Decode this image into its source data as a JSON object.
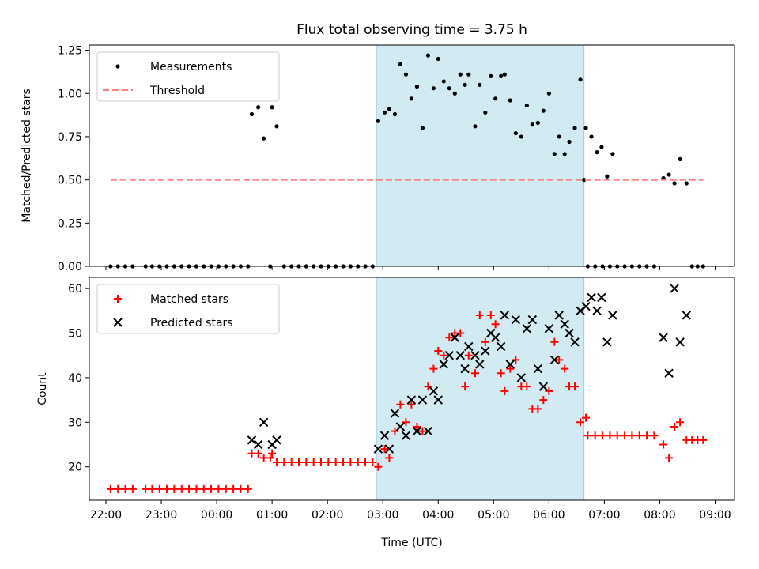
{
  "figure_title": "Flux total observing time = 3.75 h",
  "x_axis": {
    "label": "Time (UTC)",
    "range_hours": [
      21.7,
      33.35
    ],
    "ticks": [
      {
        "h": 22,
        "label": "22:00"
      },
      {
        "h": 23,
        "label": "23:00"
      },
      {
        "h": 24,
        "label": "00:00"
      },
      {
        "h": 25,
        "label": "01:00"
      },
      {
        "h": 26,
        "label": "02:00"
      },
      {
        "h": 27,
        "label": "03:00"
      },
      {
        "h": 28,
        "label": "04:00"
      },
      {
        "h": 29,
        "label": "05:00"
      },
      {
        "h": 30,
        "label": "06:00"
      },
      {
        "h": 31,
        "label": "07:00"
      },
      {
        "h": 32,
        "label": "08:00"
      },
      {
        "h": 33,
        "label": "09:00"
      }
    ]
  },
  "observing_window": {
    "start": "02:53",
    "end": "06:38",
    "color": "#add8e6"
  },
  "chart_data": [
    {
      "type": "scatter",
      "ylabel": "Matched/Predicted stars",
      "ylim": [
        0,
        1.28
      ],
      "yticks": [
        "0.00",
        "0.25",
        "0.50",
        "0.75",
        "1.00",
        "1.25"
      ],
      "legend_position": "top-left",
      "series": [
        {
          "name": "Measurements",
          "color": "#000000",
          "marker": "dot",
          "points": [
            [
              "22:05",
              0
            ],
            [
              "22:13",
              0
            ],
            [
              "22:21",
              0
            ],
            [
              "22:29",
              0
            ],
            [
              "22:43",
              0
            ],
            [
              "22:50",
              0
            ],
            [
              "22:58",
              0
            ],
            [
              "23:06",
              0
            ],
            [
              "23:14",
              0
            ],
            [
              "23:22",
              0
            ],
            [
              "23:30",
              0
            ],
            [
              "23:38",
              0
            ],
            [
              "23:46",
              0
            ],
            [
              "23:54",
              0
            ],
            [
              "00:02",
              0
            ],
            [
              "00:10",
              0
            ],
            [
              "00:18",
              0
            ],
            [
              "00:26",
              0
            ],
            [
              "00:34",
              0
            ],
            [
              "00:38",
              0.88
            ],
            [
              "00:45",
              0.92
            ],
            [
              "00:51",
              0.74
            ],
            [
              "00:58",
              0
            ],
            [
              "01:00",
              0.92
            ],
            [
              "01:05",
              0.81
            ],
            [
              "01:13",
              0
            ],
            [
              "01:21",
              0
            ],
            [
              "01:29",
              0
            ],
            [
              "01:37",
              0
            ],
            [
              "01:45",
              0
            ],
            [
              "01:53",
              0
            ],
            [
              "02:01",
              0
            ],
            [
              "02:09",
              0
            ],
            [
              "02:17",
              0
            ],
            [
              "02:25",
              0
            ],
            [
              "02:33",
              0
            ],
            [
              "02:41",
              0
            ],
            [
              "02:49",
              0
            ],
            [
              "02:55",
              0.84
            ],
            [
              "03:02",
              0.89
            ],
            [
              "03:07",
              0.91
            ],
            [
              "03:13",
              0.88
            ],
            [
              "03:19",
              1.17
            ],
            [
              "03:25",
              1.11
            ],
            [
              "03:31",
              0.97
            ],
            [
              "03:37",
              1.04
            ],
            [
              "03:43",
              0.8
            ],
            [
              "03:49",
              1.22
            ],
            [
              "03:55",
              1.03
            ],
            [
              "04:00",
              1.2
            ],
            [
              "04:06",
              1.07
            ],
            [
              "04:12",
              1.03
            ],
            [
              "04:18",
              1.0
            ],
            [
              "04:24",
              1.11
            ],
            [
              "04:29",
              1.05
            ],
            [
              "04:33",
              1.11
            ],
            [
              "04:40",
              0.81
            ],
            [
              "04:45",
              1.05
            ],
            [
              "04:51",
              0.89
            ],
            [
              "04:57",
              1.1
            ],
            [
              "05:02",
              0.97
            ],
            [
              "05:08",
              1.1
            ],
            [
              "05:12",
              1.11
            ],
            [
              "05:18",
              0.96
            ],
            [
              "05:24",
              0.77
            ],
            [
              "05:30",
              0.75
            ],
            [
              "05:36",
              0.93
            ],
            [
              "05:42",
              0.82
            ],
            [
              "05:48",
              0.83
            ],
            [
              "05:54",
              0.9
            ],
            [
              "06:00",
              1.0
            ],
            [
              "06:06",
              0.65
            ],
            [
              "06:11",
              0.75
            ],
            [
              "06:17",
              0.65
            ],
            [
              "06:22",
              0.72
            ],
            [
              "06:28",
              0.8
            ],
            [
              "06:34",
              1.08
            ],
            [
              "06:40",
              0.8
            ],
            [
              "06:46",
              0.75
            ],
            [
              "06:52",
              0.66
            ],
            [
              "06:57",
              0.69
            ],
            [
              "07:03",
              0.52
            ],
            [
              "07:09",
              0.65
            ],
            [
              "06:38",
              0.5
            ],
            [
              "06:42",
              0
            ],
            [
              "06:50",
              0
            ],
            [
              "06:58",
              0
            ],
            [
              "07:06",
              0
            ],
            [
              "07:14",
              0
            ],
            [
              "07:22",
              0
            ],
            [
              "07:30",
              0
            ],
            [
              "07:38",
              0
            ],
            [
              "07:46",
              0
            ],
            [
              "07:54",
              0
            ],
            [
              "08:04",
              0.51
            ],
            [
              "08:10",
              0.53
            ],
            [
              "08:16",
              0.48
            ],
            [
              "08:22",
              0.62
            ],
            [
              "08:29",
              0.48
            ],
            [
              "08:35",
              0
            ],
            [
              "08:41",
              0
            ],
            [
              "08:47",
              0
            ]
          ]
        },
        {
          "name": "Threshold",
          "color": "#ff7f7f",
          "style": "dashed",
          "x": [
            "22:05",
            "08:47"
          ],
          "y": 0.5
        }
      ]
    },
    {
      "type": "scatter",
      "ylabel": "Count",
      "ylim": [
        12.5,
        62.5
      ],
      "yticks": [
        "20",
        "30",
        "40",
        "50",
        "60"
      ],
      "legend_position": "top-left",
      "series": [
        {
          "name": "Matched stars",
          "color": "#ff0000",
          "marker": "plus",
          "points": [
            [
              "22:05",
              15
            ],
            [
              "22:13",
              15
            ],
            [
              "22:21",
              15
            ],
            [
              "22:29",
              15
            ],
            [
              "22:43",
              15
            ],
            [
              "22:50",
              15
            ],
            [
              "22:58",
              15
            ],
            [
              "23:06",
              15
            ],
            [
              "23:14",
              15
            ],
            [
              "23:22",
              15
            ],
            [
              "23:30",
              15
            ],
            [
              "23:38",
              15
            ],
            [
              "23:46",
              15
            ],
            [
              "23:54",
              15
            ],
            [
              "00:02",
              15
            ],
            [
              "00:10",
              15
            ],
            [
              "00:18",
              15
            ],
            [
              "00:26",
              15
            ],
            [
              "00:34",
              15
            ],
            [
              "00:38",
              23
            ],
            [
              "00:45",
              23
            ],
            [
              "00:51",
              22
            ],
            [
              "00:58",
              22
            ],
            [
              "01:00",
              23
            ],
            [
              "01:05",
              21
            ],
            [
              "01:13",
              21
            ],
            [
              "01:21",
              21
            ],
            [
              "01:29",
              21
            ],
            [
              "01:37",
              21
            ],
            [
              "01:45",
              21
            ],
            [
              "01:53",
              21
            ],
            [
              "02:01",
              21
            ],
            [
              "02:09",
              21
            ],
            [
              "02:17",
              21
            ],
            [
              "02:25",
              21
            ],
            [
              "02:33",
              21
            ],
            [
              "02:41",
              21
            ],
            [
              "02:49",
              21
            ],
            [
              "02:55",
              20
            ],
            [
              "03:02",
              24
            ],
            [
              "03:07",
              22
            ],
            [
              "03:13",
              28
            ],
            [
              "03:19",
              34
            ],
            [
              "03:25",
              30
            ],
            [
              "03:31",
              34
            ],
            [
              "03:37",
              29
            ],
            [
              "03:43",
              28
            ],
            [
              "03:49",
              38
            ],
            [
              "03:55",
              42
            ],
            [
              "04:00",
              46
            ],
            [
              "04:06",
              45
            ],
            [
              "04:12",
              49
            ],
            [
              "04:18",
              50
            ],
            [
              "04:24",
              50
            ],
            [
              "04:29",
              38
            ],
            [
              "04:33",
              45
            ],
            [
              "04:40",
              41
            ],
            [
              "04:45",
              54
            ],
            [
              "04:51",
              48
            ],
            [
              "04:57",
              54
            ],
            [
              "05:02",
              52
            ],
            [
              "05:08",
              41
            ],
            [
              "05:12",
              37
            ],
            [
              "05:18",
              42
            ],
            [
              "05:24",
              44
            ],
            [
              "05:30",
              38
            ],
            [
              "05:36",
              38
            ],
            [
              "05:42",
              33
            ],
            [
              "05:48",
              33
            ],
            [
              "05:54",
              35
            ],
            [
              "06:00",
              37
            ],
            [
              "06:06",
              48
            ],
            [
              "06:11",
              44
            ],
            [
              "06:17",
              42
            ],
            [
              "06:22",
              38
            ],
            [
              "06:28",
              38
            ],
            [
              "06:34",
              30
            ],
            [
              "06:40",
              31
            ],
            [
              "06:42",
              27
            ],
            [
              "06:50",
              27
            ],
            [
              "06:58",
              27
            ],
            [
              "07:06",
              27
            ],
            [
              "07:14",
              27
            ],
            [
              "07:22",
              27
            ],
            [
              "07:30",
              27
            ],
            [
              "07:38",
              27
            ],
            [
              "07:46",
              27
            ],
            [
              "07:54",
              27
            ],
            [
              "08:04",
              25
            ],
            [
              "08:10",
              22
            ],
            [
              "08:16",
              29
            ],
            [
              "08:22",
              30
            ],
            [
              "08:29",
              26
            ],
            [
              "08:35",
              26
            ],
            [
              "08:41",
              26
            ],
            [
              "08:47",
              26
            ]
          ]
        },
        {
          "name": "Predicted stars",
          "color": "#000000",
          "marker": "x",
          "points": [
            [
              "00:38",
              26
            ],
            [
              "00:45",
              25
            ],
            [
              "00:51",
              30
            ],
            [
              "01:00",
              25
            ],
            [
              "01:05",
              26
            ],
            [
              "02:55",
              24
            ],
            [
              "03:02",
              27
            ],
            [
              "03:07",
              24
            ],
            [
              "03:13",
              32
            ],
            [
              "03:19",
              29
            ],
            [
              "03:25",
              27
            ],
            [
              "03:31",
              35
            ],
            [
              "03:37",
              28
            ],
            [
              "03:43",
              35
            ],
            [
              "03:49",
              28
            ],
            [
              "03:55",
              37
            ],
            [
              "04:00",
              35
            ],
            [
              "04:06",
              43
            ],
            [
              "04:12",
              45
            ],
            [
              "04:18",
              49
            ],
            [
              "04:24",
              45
            ],
            [
              "04:29",
              42
            ],
            [
              "04:33",
              47
            ],
            [
              "04:40",
              45
            ],
            [
              "04:45",
              43
            ],
            [
              "04:51",
              46
            ],
            [
              "04:57",
              50
            ],
            [
              "05:02",
              49
            ],
            [
              "05:08",
              47
            ],
            [
              "05:12",
              54
            ],
            [
              "05:18",
              43
            ],
            [
              "05:24",
              53
            ],
            [
              "05:30",
              40
            ],
            [
              "05:36",
              51
            ],
            [
              "05:42",
              53
            ],
            [
              "05:48",
              42
            ],
            [
              "05:54",
              38
            ],
            [
              "06:00",
              51
            ],
            [
              "06:06",
              44
            ],
            [
              "06:11",
              54
            ],
            [
              "06:17",
              52
            ],
            [
              "06:22",
              50
            ],
            [
              "06:28",
              48
            ],
            [
              "06:34",
              55
            ],
            [
              "06:40",
              56
            ],
            [
              "06:46",
              58
            ],
            [
              "06:52",
              55
            ],
            [
              "06:57",
              58
            ],
            [
              "07:03",
              48
            ],
            [
              "07:09",
              54
            ],
            [
              "08:04",
              49
            ],
            [
              "08:10",
              41
            ],
            [
              "08:16",
              60
            ],
            [
              "08:22",
              48
            ],
            [
              "08:29",
              54
            ]
          ]
        }
      ]
    }
  ]
}
